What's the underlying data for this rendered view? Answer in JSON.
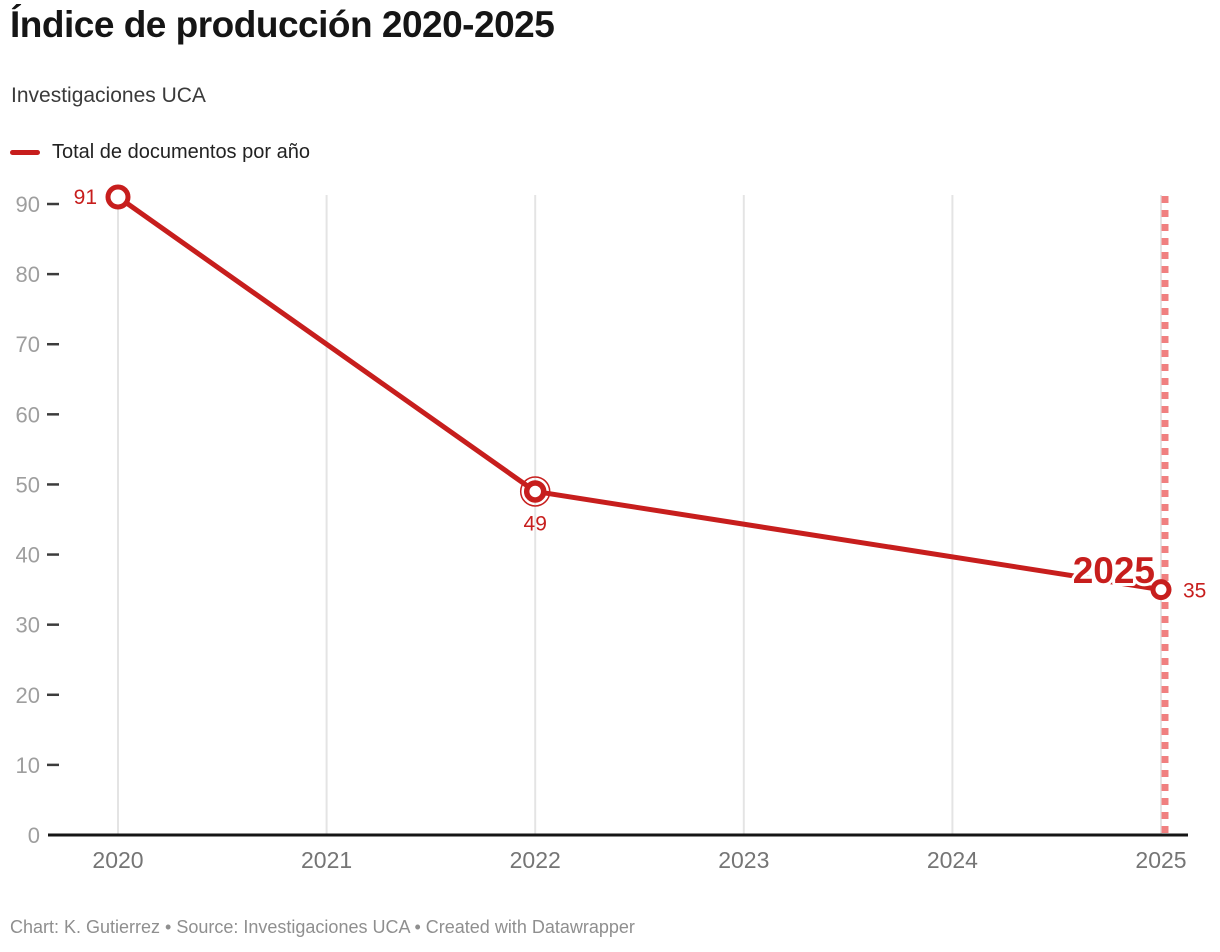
{
  "header": {
    "title": "Índice de producción 2020-2025",
    "subtitle": "Investigaciones UCA"
  },
  "legend": {
    "label": "Total de documentos por año"
  },
  "footer": {
    "text": "Chart: K. Gutierrez • Source: Investigaciones UCA • Created with Datawrapper"
  },
  "colors": {
    "accent": "#c71e1d",
    "annotation_line": "#f08080",
    "grid": "#e4e4e4",
    "axis": "#161616",
    "tick": "#3c3c3c",
    "y_label": "#9e9e9e",
    "x_label": "#757575"
  },
  "chart_data": {
    "type": "line",
    "title": "Índice de producción 2020-2025",
    "subtitle": "Investigaciones UCA",
    "series": [
      {
        "name": "Total de documentos por año",
        "points": [
          {
            "x": 2020,
            "y": 91,
            "label": "91",
            "label_pos": "left"
          },
          {
            "x": 2022,
            "y": 49,
            "label": "49",
            "label_pos": "below",
            "emphasis": true
          },
          {
            "x": 2025,
            "y": 35,
            "label": "35",
            "label_pos": "right"
          }
        ]
      }
    ],
    "x_ticks": [
      2020,
      2021,
      2022,
      2023,
      2024,
      2025
    ],
    "y_ticks": [
      0,
      10,
      20,
      30,
      40,
      50,
      60,
      70,
      80,
      90
    ],
    "xlim": [
      2020,
      2025
    ],
    "ylim": [
      0,
      91
    ],
    "grid": "vertical",
    "legend_position": "top-left",
    "annotation": {
      "label": "2025",
      "x": 2025,
      "style": "dashed-vertical-line"
    }
  }
}
